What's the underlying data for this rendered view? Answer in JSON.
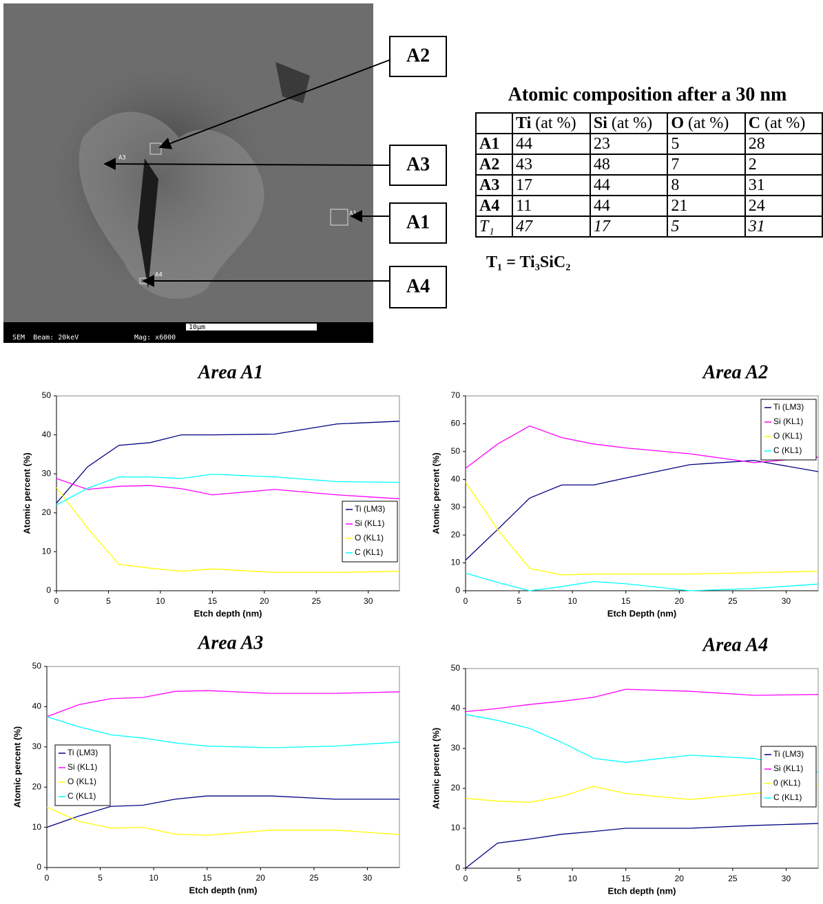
{
  "figure": {
    "callouts": [
      "A2",
      "A3",
      "A1",
      "A4"
    ],
    "image_labels": [
      "A2",
      "A3",
      "A1",
      "A4"
    ],
    "info_bar": [
      "SEM  Beam: 20keV",
      "Mag: x6000"
    ],
    "scale_bar": "10µm"
  },
  "table": {
    "title": "Atomic composition after a 30 nm",
    "header": [
      {
        "element": "Ti",
        "unit": "(at %)"
      },
      {
        "element": "Si",
        "unit": "(at %)"
      },
      {
        "element": "O",
        "unit": "(at %)"
      },
      {
        "element": "C",
        "unit": "(at %)"
      }
    ],
    "rows": [
      [
        "A1",
        44,
        23,
        5,
        28
      ],
      [
        "A2",
        43,
        48,
        7,
        2
      ],
      [
        "A3",
        17,
        44,
        8,
        31
      ],
      [
        "A4",
        11,
        44,
        21,
        24
      ],
      [
        "T₁",
        47,
        17,
        5,
        31
      ]
    ]
  },
  "formula": "T₁ = Ti₃SiC₂",
  "chart_data": [
    {
      "type": "line",
      "title": "Area A1",
      "x_label": "Etch depth (nm)",
      "y_label": "Atomic percent (%)",
      "legend": "lower right",
      "x": [
        0,
        3,
        6,
        9,
        12,
        15,
        21,
        27,
        33
      ],
      "xlim": [
        0,
        33
      ],
      "xticks": [
        0,
        5,
        10,
        15,
        20,
        25,
        30
      ],
      "ylim": [
        0,
        50
      ],
      "yticks": [
        0,
        10,
        20,
        30,
        40,
        50
      ],
      "series": [
        {
          "name": "Ti (LM3)",
          "color": "#000080",
          "values": [
            22.5,
            31.8,
            37.3,
            38,
            40,
            40,
            40.2,
            42.8,
            43.5
          ]
        },
        {
          "name": "Si (KL1)",
          "color": "#ff00ff",
          "values": [
            28.8,
            26,
            26.8,
            27,
            26.2,
            24.6,
            26,
            24.6,
            23.6
          ]
        },
        {
          "name": "O (KL1)",
          "color": "#ffff00",
          "values": [
            26.5,
            16,
            6.8,
            5.8,
            5,
            5.6,
            4.7,
            4.7,
            5
          ]
        },
        {
          "name": "C (KL1)",
          "color": "#00ffff",
          "values": [
            22,
            26.3,
            29.2,
            29.2,
            28.8,
            29.9,
            29.2,
            28,
            27.8
          ]
        }
      ]
    },
    {
      "type": "line",
      "title": "Area A2",
      "x_label": "Etch Depth (nm)",
      "y_label": "Atomic percent (%)",
      "legend": "upper right",
      "x": [
        0,
        3,
        6,
        9,
        12,
        15,
        21,
        27,
        33
      ],
      "xlim": [
        0,
        33
      ],
      "xticks": [
        0,
        5,
        10,
        15,
        20,
        25,
        30
      ],
      "ylim": [
        0,
        70
      ],
      "yticks": [
        0,
        10,
        20,
        30,
        40,
        50,
        60,
        70
      ],
      "series": [
        {
          "name": "Ti (LM3)",
          "color": "#000080",
          "values": [
            11,
            22,
            33.3,
            38,
            38,
            40.5,
            45.3,
            46.8,
            42.8
          ]
        },
        {
          "name": "Si (KL1)",
          "color": "#ff00ff",
          "values": [
            44,
            52.7,
            59.2,
            55,
            52.7,
            51.3,
            49.2,
            46,
            48
          ]
        },
        {
          "name": "O (KL1)",
          "color": "#ffff00",
          "values": [
            39,
            22,
            8,
            5.7,
            6,
            6,
            6,
            6.5,
            7
          ]
        },
        {
          "name": "C (KL1)",
          "color": "#00ffff",
          "values": [
            6.3,
            3,
            0,
            1.5,
            3.3,
            2.5,
            0,
            0.8,
            2.4
          ]
        }
      ]
    },
    {
      "type": "line",
      "title": "Area A3",
      "x_label": "Etch depth (nm)",
      "y_label": "Atomic percent (%)",
      "legend": "center left",
      "x": [
        0,
        3,
        6,
        9,
        12,
        15,
        21,
        27,
        33
      ],
      "xlim": [
        0,
        33
      ],
      "xticks": [
        0,
        5,
        10,
        15,
        20,
        25,
        30
      ],
      "ylim": [
        0,
        50
      ],
      "yticks": [
        0,
        10,
        20,
        30,
        40,
        50
      ],
      "series": [
        {
          "name": "Ti (LM3)",
          "color": "#000080",
          "values": [
            10,
            12.8,
            15.2,
            15.5,
            17,
            17.8,
            17.8,
            17,
            17
          ]
        },
        {
          "name": "Si (KL1)",
          "color": "#ff00ff",
          "values": [
            37.5,
            40.5,
            42,
            42.3,
            43.8,
            44,
            43.3,
            43.3,
            43.7
          ]
        },
        {
          "name": "O (KL1)",
          "color": "#ffff00",
          "values": [
            15,
            11.5,
            9.8,
            10,
            8.3,
            8,
            9.3,
            9.3,
            8.2
          ]
        },
        {
          "name": "C (KL1)",
          "color": "#00ffff",
          "values": [
            37.5,
            35,
            33,
            32.2,
            31,
            30.2,
            29.8,
            30.2,
            31.2
          ]
        }
      ]
    },
    {
      "type": "line",
      "title": "Area A4",
      "x_label": "Etch depth (nm)",
      "y_label": "Atomic percent (%)",
      "legend": "center right",
      "x": [
        0,
        3,
        6,
        9,
        12,
        15,
        21,
        27,
        33
      ],
      "xlim": [
        0,
        33
      ],
      "xticks": [
        0,
        5,
        10,
        15,
        20,
        25,
        30
      ],
      "ylim": [
        0,
        50
      ],
      "yticks": [
        0,
        10,
        20,
        30,
        40,
        50
      ],
      "series": [
        {
          "name": "Ti (LM3)",
          "color": "#000080",
          "values": [
            0,
            6.3,
            7.3,
            8.5,
            9.2,
            10,
            10,
            10.7,
            11.2
          ]
        },
        {
          "name": "Si (KL1)",
          "color": "#ff00ff",
          "values": [
            39.2,
            40,
            41,
            41.8,
            42.8,
            44.8,
            44.3,
            43.3,
            43.5
          ]
        },
        {
          "name": "0 (KL1)",
          "color": "#ffff00",
          "values": [
            17.5,
            16.8,
            16.5,
            18,
            20.5,
            18.7,
            17.2,
            18.7,
            20.8
          ]
        },
        {
          "name": "C (KL1)",
          "color": "#00ffff",
          "values": [
            38.5,
            37,
            35,
            31.5,
            27.5,
            26.5,
            28.3,
            27.5,
            24
          ]
        }
      ]
    }
  ]
}
